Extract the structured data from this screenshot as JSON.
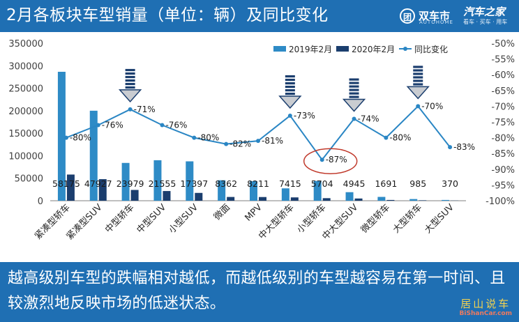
{
  "title": "2月各板块车型销量（单位：辆）及同比变化",
  "brand_left": {
    "mark": "团",
    "name": "双车市",
    "sub": "AUTOHOME"
  },
  "brand_right": {
    "name": "汽车之家",
    "slogan": "看车 · 买车 · 用车"
  },
  "footer": {
    "text": "越高级别车型的跌幅相对越低，而越低级别的车型越容易在第一时间、且较激烈地反映市场的低迷状态。"
  },
  "watermark": {
    "line1": "居山说车",
    "line2": "BiShanCar.com"
  },
  "colors": {
    "header": "#1f6fb3",
    "series_2019": "#2e8bc6",
    "series_2020": "#1b3e6e",
    "series_yoy": "#2a86c4",
    "highlight": "#c0392b"
  },
  "chart_data": {
    "type": "bar",
    "categories": [
      "紧凑型轿车",
      "紧凑型SUV",
      "中型轿车",
      "中型SUV",
      "小型SUV",
      "微面",
      "MPV",
      "中大型轿车",
      "小型轿车",
      "中大型SUV",
      "微型轿车",
      "大型轿车",
      "大型SUV"
    ],
    "series": [
      {
        "name": "2019年2月",
        "type": "bar",
        "axis": "left",
        "values": [
          286500,
          200000,
          84000,
          90000,
          87500,
          45500,
          43500,
          27500,
          44000,
          19000,
          8500,
          3700,
          1700
        ]
      },
      {
        "name": "2020年2月",
        "type": "bar",
        "axis": "left",
        "values": [
          58175,
          47927,
          23979,
          21555,
          17397,
          8362,
          8211,
          7415,
          5704,
          4945,
          1691,
          985,
          370
        ]
      },
      {
        "name": "同比变化",
        "type": "line",
        "axis": "right",
        "values": [
          -80,
          -76,
          -71,
          -76,
          -80,
          -82,
          -81,
          -73,
          -87,
          -74,
          -80,
          -70,
          -83
        ]
      }
    ],
    "bar_labels": [
      "58175",
      "47927",
      "23979",
      "21555",
      "17397",
      "8362",
      "8211",
      "7415",
      "5704",
      "4945",
      "1691",
      "985",
      "370"
    ],
    "line_labels": [
      "-80%",
      "-76%",
      "-71%",
      "-76%",
      "-80%",
      "-82%",
      "-81%",
      "-73%",
      "-87%",
      "-74%",
      "-80%",
      "-70%",
      "-83%"
    ],
    "left_axis": {
      "ylim": [
        0,
        350000
      ],
      "ticks": [
        "0",
        "50000",
        "100000",
        "150000",
        "200000",
        "250000",
        "300000",
        "350000"
      ]
    },
    "right_axis": {
      "ylim": [
        -100,
        -50
      ],
      "ticks": [
        "-50%",
        "-55%",
        "-60%",
        "-65%",
        "-70%",
        "-75%",
        "-80%",
        "-85%",
        "-90%",
        "-95%",
        "-100%"
      ]
    },
    "down_arrows_at": [
      "中型轿车",
      "中大型轿车",
      "中大型SUV",
      "大型轿车"
    ],
    "highlight_circle_at": "小型轿车",
    "legend_position": "top-right",
    "grid": false
  }
}
